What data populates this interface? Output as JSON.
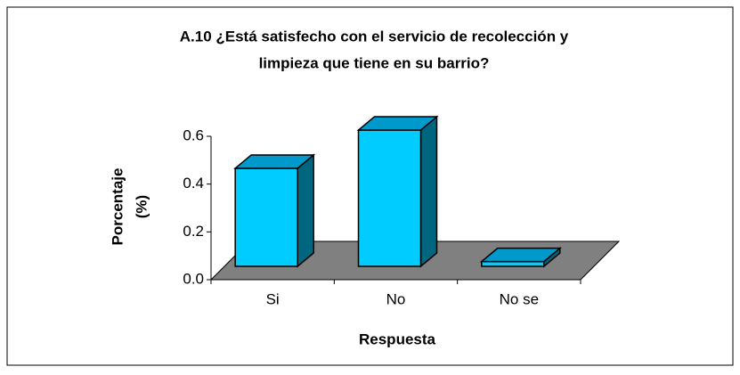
{
  "chart_data": {
    "type": "bar3d",
    "title": [
      "A.10 ¿Está satisfecho con el servicio de recolección y",
      "limpieza que tiene en su barrio?"
    ],
    "categories": [
      "Si",
      "No",
      "No se"
    ],
    "values": [
      0.41,
      0.57,
      0.02
    ],
    "color": "#00ccff",
    "ylim": [
      0,
      0.6
    ],
    "yticks": [
      {
        "value": 0,
        "label": "0.0"
      },
      0.2,
      0.4,
      0.6
    ],
    "ylabel": [
      "Porcentaje",
      "(%)"
    ],
    "xlabel": "Respuesta",
    "grid": false
  }
}
